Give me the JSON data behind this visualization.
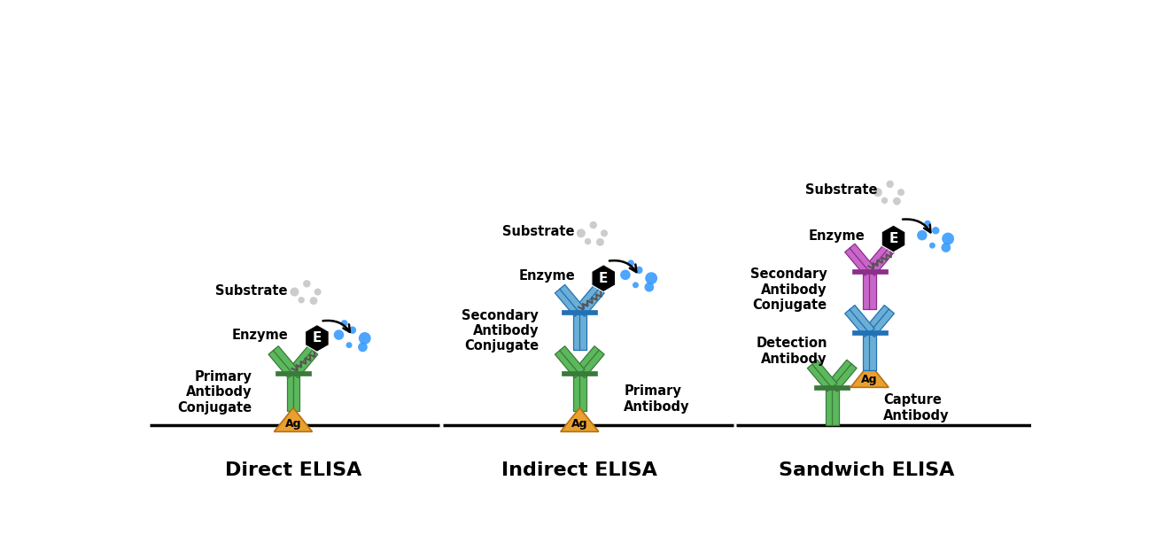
{
  "title_direct": "Direct ELISA",
  "title_indirect": "Indirect ELISA",
  "title_sandwich": "Sandwich ELISA",
  "green_color": "#5CB85C",
  "green_dark": "#3A7A3A",
  "blue_color": "#6BAED6",
  "blue_dark": "#2171B5",
  "pink_color": "#C966C9",
  "pink_dark": "#8B2F8B",
  "antigen_color": "#E8A030",
  "antigen_dark": "#B87010",
  "substrate_gray": "#BBBBBB",
  "product_blue": "#3399FF",
  "bg_color": "#FFFFFF",
  "label_fontsize": 10.5,
  "title_fontsize": 16
}
